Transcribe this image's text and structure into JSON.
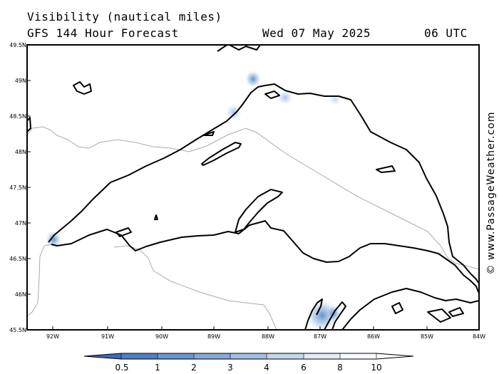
{
  "header": {
    "variable": "Visibility (nautical miles)",
    "model": "GFS 144 Hour Forecast",
    "date": "Wed 07 May 2025",
    "time": "06 UTC"
  },
  "credit": "© www.PassageWeather.com",
  "map": {
    "lat_labels": [
      "49.5N",
      "49N",
      "48.5N",
      "48N",
      "47.5N",
      "47N",
      "46.5N",
      "46N",
      "45.5N"
    ],
    "lon_labels": [
      "92W",
      "91W",
      "90W",
      "89W",
      "88W",
      "87W",
      "86W",
      "85W",
      "84W"
    ],
    "region": "Lake Superior",
    "colors": {
      "coast": "#000000",
      "border": "#aaaaaa",
      "low_visibility": "#4a7fc1"
    }
  },
  "legend": {
    "labels": [
      "0.5",
      "1",
      "2",
      "3",
      "4",
      "6",
      "8",
      "10"
    ],
    "colors": [
      "#3d6bb5",
      "#4f7fc2",
      "#6a95cd",
      "#86a9d6",
      "#a3bfe0",
      "#c3d6ec",
      "#e2ebf6",
      "#f8fbff"
    ]
  }
}
